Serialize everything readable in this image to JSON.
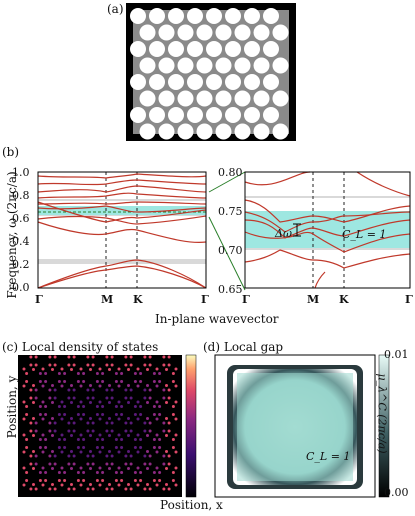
{
  "panel_a": {
    "label": "(a)"
  },
  "panel_b": {
    "label": "(b)",
    "ylabel": "Frequency, ω (2πc/a)",
    "xlabel": "In-plane wavevector",
    "left_yticks": [
      "0.0",
      "0.2",
      "0.4",
      "0.6",
      "0.8",
      "1.0"
    ],
    "right_yticks": [
      "0.65",
      "0.70",
      "0.75",
      "0.80"
    ],
    "xticks": [
      "Γ",
      "M",
      "K",
      "Γ"
    ],
    "annotation_gap": "Δω",
    "annotation_chern": "C_L = 1",
    "colors": {
      "band": "#c0392b",
      "gap": "#9ee7e1",
      "grey": "#bdbdbd",
      "dashed": "#2a7f2a"
    }
  },
  "panel_c": {
    "label": "(c) Local density of states",
    "ylabel": "Position, y",
    "xlabel": "Position, x"
  },
  "panel_d": {
    "label": "(d) Local gap",
    "colorbar_label": "μ_λ^C (2πc/a)",
    "colorbar_ticks": [
      "0.01",
      "0.00"
    ],
    "annotation_chern": "C_L = 1"
  }
}
